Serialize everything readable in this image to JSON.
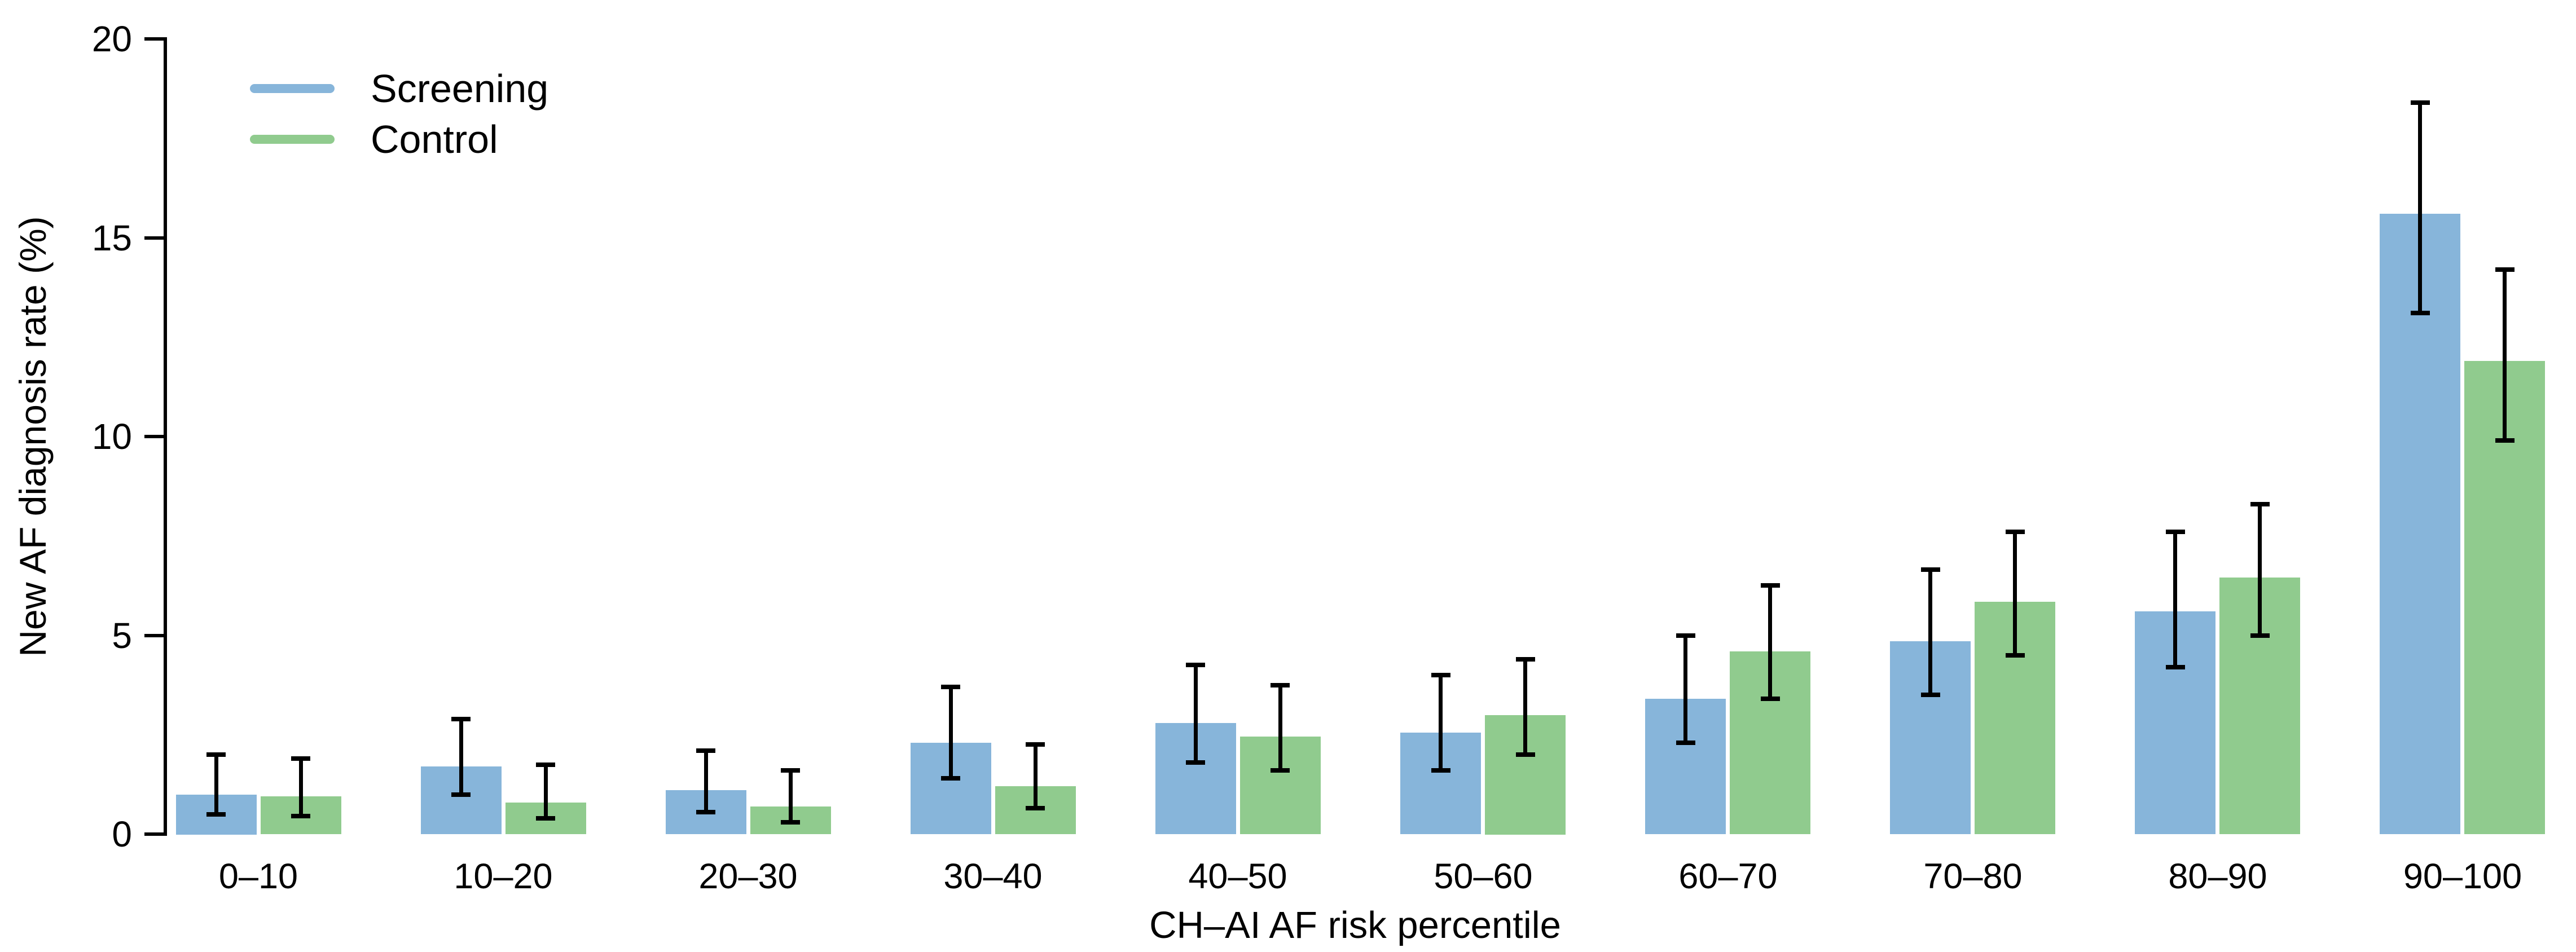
{
  "chart_data": {
    "type": "bar",
    "title": "",
    "xlabel": "CH–AI AF risk percentile",
    "ylabel": "New AF diagnosis rate (%)",
    "categories": [
      "0–10",
      "10–20",
      "20–30",
      "30–40",
      "40–50",
      "50–60",
      "60–70",
      "70–80",
      "80–90",
      "90–100"
    ],
    "yticks": [
      0,
      5,
      10,
      15,
      20
    ],
    "ylim": [
      0,
      20
    ],
    "grid": false,
    "legend_position": "top-left",
    "axis_color": "#000000",
    "error_bar_color": "#000000",
    "series": [
      {
        "name": "Screening",
        "color": "#87B5DA",
        "values": [
          1.0,
          1.7,
          1.1,
          2.3,
          2.8,
          2.55,
          3.4,
          4.85,
          5.6,
          15.6
        ],
        "err_low": [
          0.5,
          1.0,
          0.55,
          1.4,
          1.8,
          1.6,
          2.3,
          3.5,
          4.2,
          13.1
        ],
        "err_high": [
          2.0,
          2.9,
          2.1,
          3.7,
          4.25,
          4.0,
          5.0,
          6.65,
          7.6,
          18.4
        ]
      },
      {
        "name": "Control",
        "color": "#90CB8E",
        "values": [
          0.95,
          0.8,
          0.7,
          1.2,
          2.45,
          3.0,
          4.6,
          5.85,
          6.45,
          11.9
        ],
        "err_low": [
          0.45,
          0.4,
          0.3,
          0.65,
          1.6,
          2.0,
          3.4,
          4.5,
          5.0,
          9.9
        ],
        "err_high": [
          1.9,
          1.75,
          1.6,
          2.25,
          3.75,
          4.4,
          6.25,
          7.6,
          8.3,
          14.2
        ]
      }
    ]
  }
}
